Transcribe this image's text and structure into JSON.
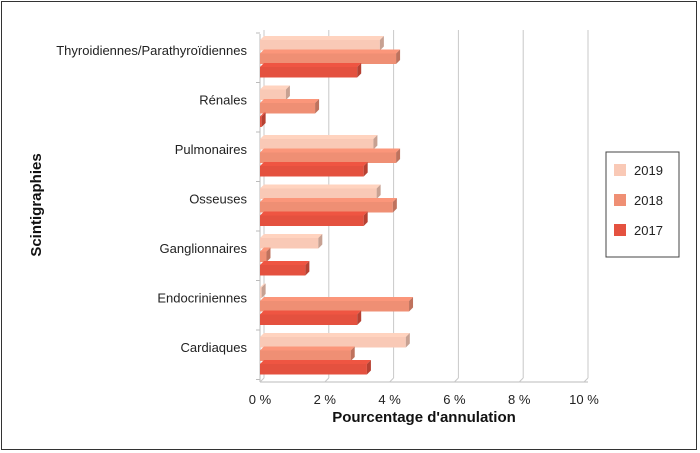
{
  "chart_data": {
    "type": "bar",
    "orientation": "horizontal",
    "categories": [
      "Thyroidiennes/Parathyroïdiennes",
      "Rénales",
      "Pulmonaires",
      "Osseuses",
      "Ganglionnaires",
      "Endocriniennes",
      "Cardiaques"
    ],
    "series": [
      {
        "name": "2019",
        "color": "#f9c9b6",
        "values": [
          3.7,
          0.8,
          3.5,
          3.6,
          1.8,
          0.05,
          4.5
        ]
      },
      {
        "name": "2018",
        "color": "#ef8f74",
        "values": [
          4.2,
          1.7,
          4.2,
          4.1,
          0.2,
          4.6,
          2.8
        ]
      },
      {
        "name": "2017",
        "color": "#e4513f",
        "values": [
          3.0,
          0.05,
          3.2,
          3.2,
          1.4,
          3.0,
          3.3
        ]
      }
    ],
    "x_ticks": [
      "0 %",
      "2 %",
      "4 %",
      "6 %",
      "8 %",
      "10 %"
    ],
    "xlim": [
      0,
      10
    ],
    "xlabel": "Pourcentage d'annulation",
    "ylabel": "Scintigraphies",
    "grid": true,
    "legend_position": "right"
  }
}
